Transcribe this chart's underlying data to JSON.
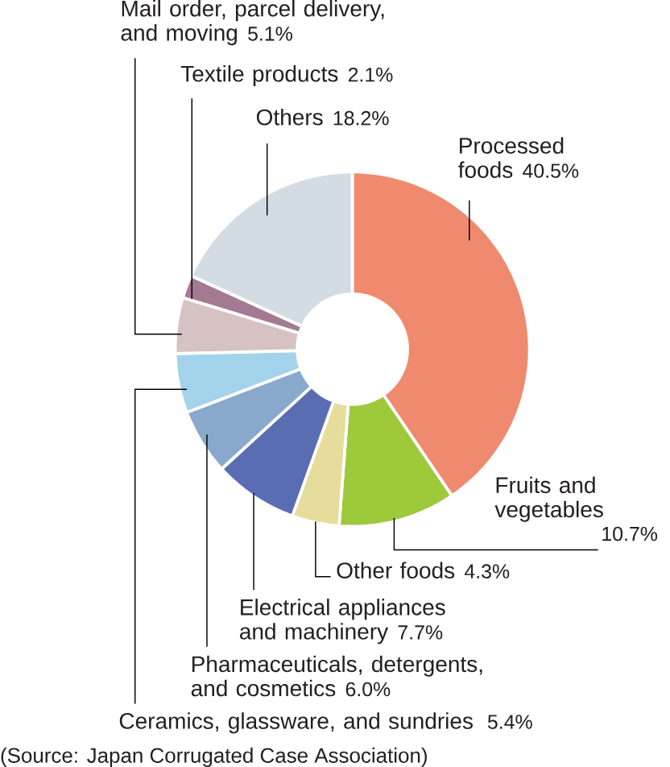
{
  "chart_data": {
    "type": "donut",
    "categories": [
      "Processed foods",
      "Fruits and vegetables",
      "Other foods",
      "Electrical appliances and machinery",
      "Pharmaceuticals, detergents, and cosmetics",
      "Ceramics, glassware, and sundries",
      "Mail order, parcel delivery, and moving",
      "Textile products",
      "Others"
    ],
    "values": [
      40.5,
      10.7,
      4.3,
      7.7,
      6.0,
      5.4,
      5.1,
      2.1,
      18.2
    ],
    "colors": [
      "#ef8a6e",
      "#9dc93b",
      "#e6dc9c",
      "#5a6db3",
      "#88a9cb",
      "#a3d3ea",
      "#d6c2c2",
      "#a47a93",
      "#d3dce2"
    ],
    "value_labels": [
      "40.5%",
      "10.7%",
      "4.3%",
      "7.7%",
      "6.0%",
      "5.4%",
      "5.1%",
      "2.1%",
      "18.2%"
    ],
    "annotations": [
      "(Source: Japan Corrugated Case Association)"
    ]
  }
}
